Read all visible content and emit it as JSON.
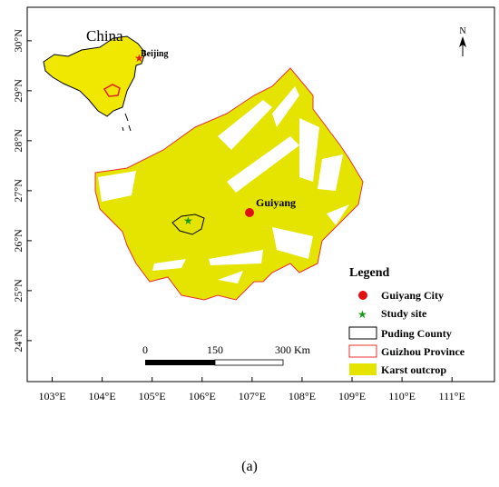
{
  "map": {
    "inset_title": "China",
    "inset_label": "Beijing",
    "city_label": "Guiyang",
    "north": "N",
    "xlim": [
      102.5,
      111.85
    ],
    "ylim": [
      23.18,
      30.67
    ],
    "xticks": [
      {
        "value": 103,
        "label": "103°E"
      },
      {
        "value": 104,
        "label": "104°E"
      },
      {
        "value": 105,
        "label": "105°E"
      },
      {
        "value": 106,
        "label": "106°E"
      },
      {
        "value": 107,
        "label": "107°E"
      },
      {
        "value": 108,
        "label": "108°E"
      },
      {
        "value": 109,
        "label": "109°E"
      },
      {
        "value": 110,
        "label": "110°E"
      },
      {
        "value": 111,
        "label": "111°E"
      }
    ],
    "yticks": [
      {
        "value": 24,
        "label": "24°N"
      },
      {
        "value": 25,
        "label": "25°N"
      },
      {
        "value": 26,
        "label": "26°N"
      },
      {
        "value": 27,
        "label": "27°N"
      },
      {
        "value": 28,
        "label": "28°N"
      },
      {
        "value": 29,
        "label": "29°N"
      },
      {
        "value": 30,
        "label": "30°N"
      }
    ],
    "scale_bar": [
      "0",
      "150",
      "300 Km"
    ],
    "legend": {
      "title": "Legend",
      "items": [
        "Guiyang City",
        "Study site",
        "Puding County",
        "Guizhou Province",
        "Karst outcrop"
      ]
    },
    "caption": "(a)"
  }
}
